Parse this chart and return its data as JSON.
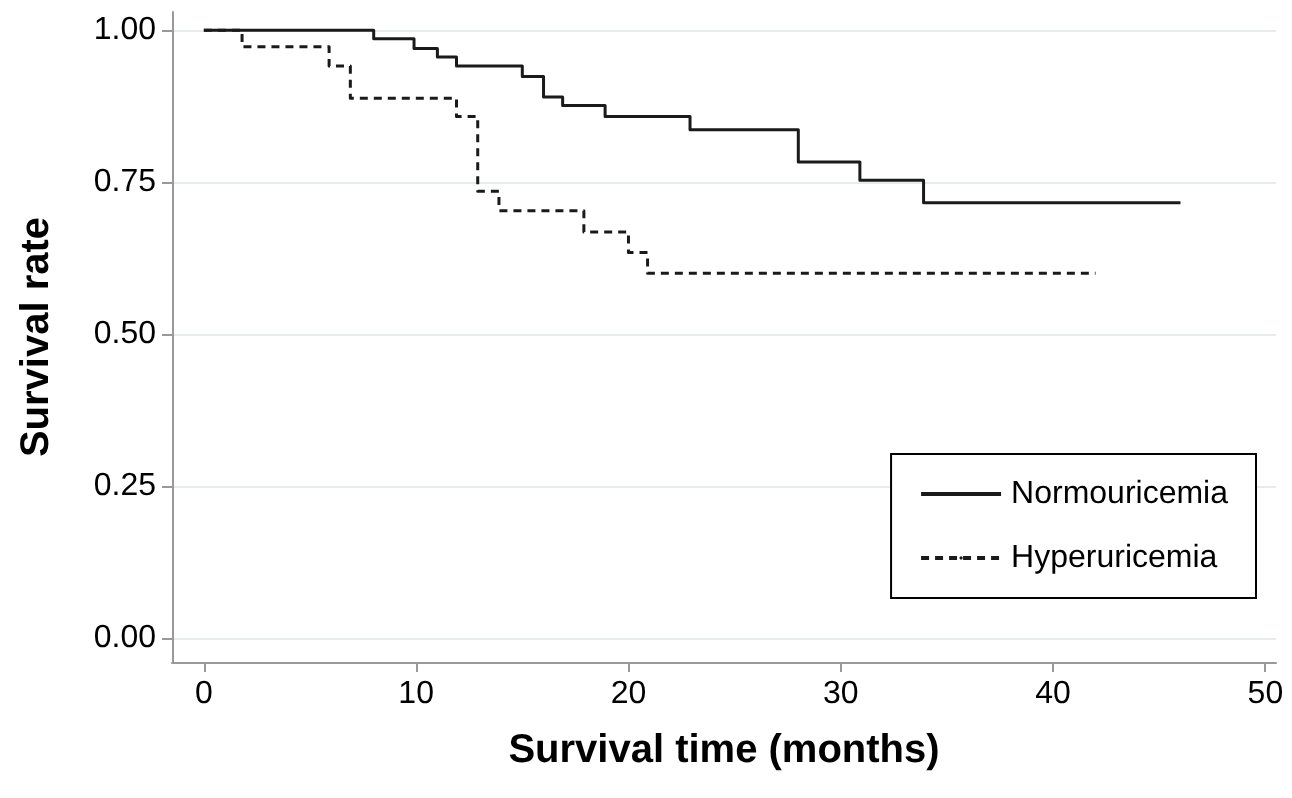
{
  "chart_data": {
    "type": "step",
    "xlabel": "Survival time (months)",
    "ylabel": "Survival rate",
    "xlim": [
      -1.5,
      50.5
    ],
    "xticks": [
      0,
      10,
      20,
      30,
      40,
      50
    ],
    "ylim": [
      -0.04,
      1.03
    ],
    "yticks": [
      {
        "value": 0,
        "label": "0.00"
      },
      {
        "value": 0.25,
        "label": "0.25"
      },
      {
        "value": 0.5,
        "label": "0.50"
      },
      {
        "value": 0.75,
        "label": "0.75"
      },
      {
        "value": 1,
        "label": "1.00"
      }
    ],
    "grid": "y",
    "legend": "bottom right",
    "marker": "none",
    "series": [
      {
        "name": "Normouricemia",
        "color": "#1a1a1a",
        "line_style": "solid",
        "x": [
          0,
          8,
          9.9,
          11,
          11.9,
          15,
          16,
          16.9,
          18.9,
          22.9,
          28,
          30.9,
          33.9,
          46
        ],
        "values": [
          1,
          0.986,
          0.97,
          0.956,
          0.941,
          0.924,
          0.89,
          0.876,
          0.858,
          0.836,
          0.783,
          0.753,
          0.716,
          0.716
        ]
      },
      {
        "name": "Hyperuricemia",
        "color": "#1a1a1a",
        "line_style": "dashed",
        "x": [
          0,
          1.8,
          5.9,
          6.9,
          11.9,
          12.9,
          13.9,
          17.9,
          20,
          20.9,
          42
        ],
        "values": [
          1,
          0.973,
          0.941,
          0.888,
          0.858,
          0.735,
          0.703,
          0.668,
          0.634,
          0.6,
          0.6
        ]
      }
    ]
  }
}
